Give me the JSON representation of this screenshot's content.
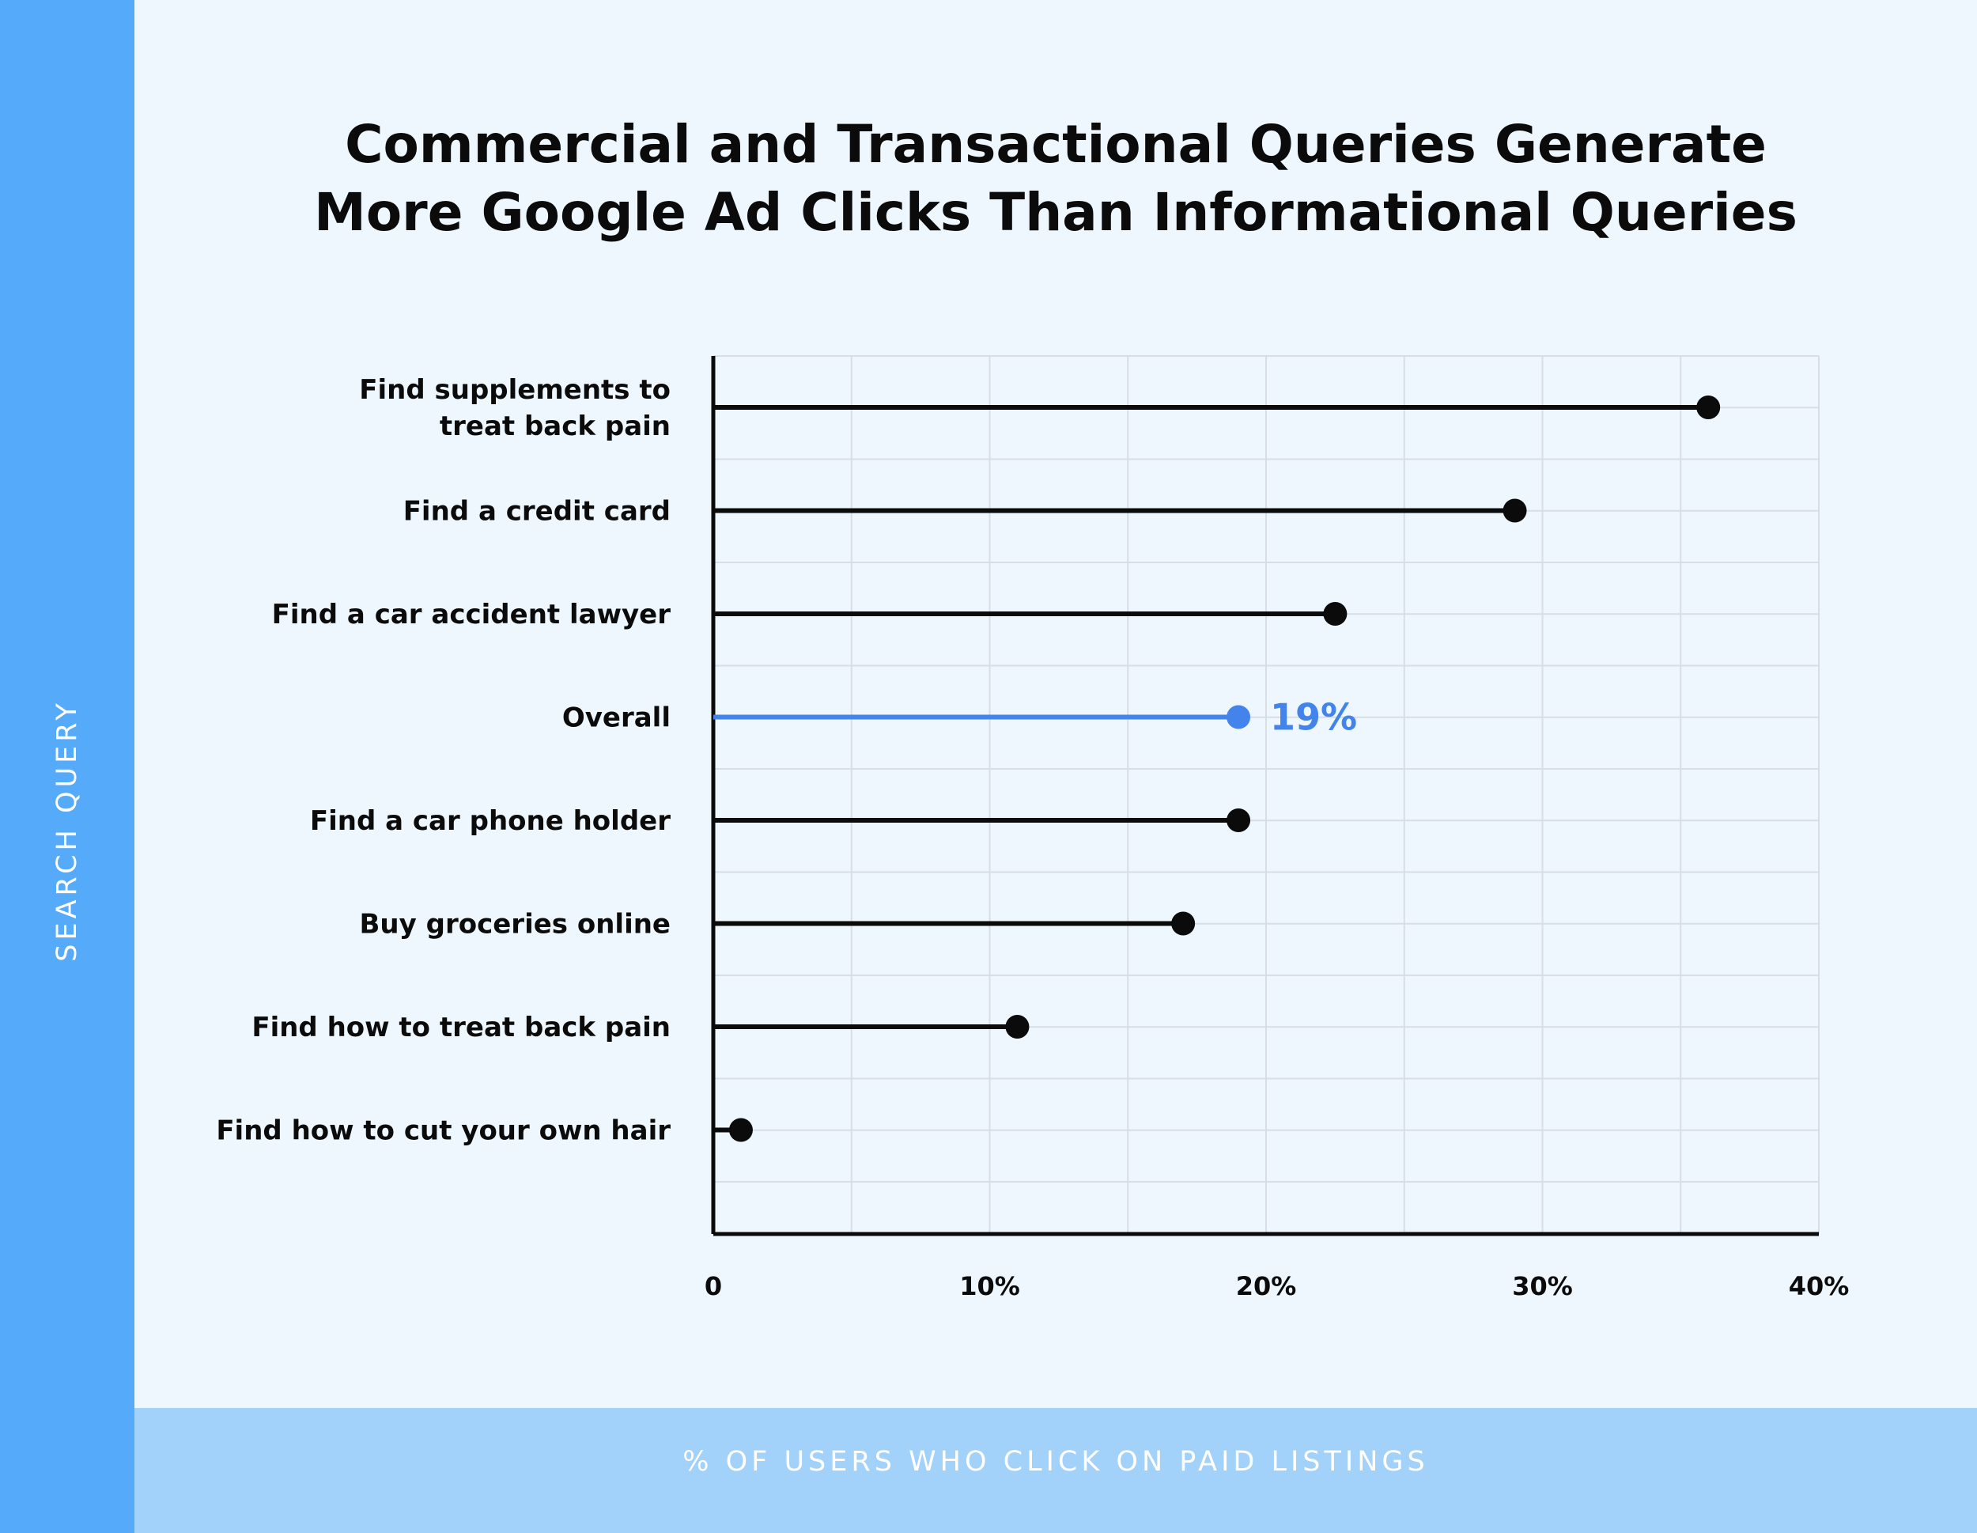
{
  "chart_data": {
    "type": "lollipop",
    "title": [
      "Commercial and Transactional Queries Generate",
      "More Google Ad Clicks Than Informational Queries"
    ],
    "xlabel": "% OF USERS WHO CLICK ON PAID LISTINGS",
    "ylabel": "SEARCH QUERY",
    "xlim": [
      0,
      40
    ],
    "x_ticks": [
      0,
      10,
      20,
      30,
      40
    ],
    "x_tick_labels": [
      "0",
      "10%",
      "20%",
      "30%",
      "40%"
    ],
    "grid": true,
    "categories": [
      [
        "Find supplements to",
        "treat back pain"
      ],
      [
        "Find a credit card"
      ],
      [
        "Find a car accident lawyer"
      ],
      [
        "Overall"
      ],
      [
        "Find a car phone holder"
      ],
      [
        "Buy groceries online"
      ],
      [
        "Find how to treat back pain"
      ],
      [
        "Find how to cut your own hair"
      ]
    ],
    "values": [
      36,
      29,
      22.5,
      19,
      19,
      17,
      11,
      1
    ],
    "highlight_index": 3,
    "highlight_label": "19%",
    "colors": {
      "default": "#0b0b0b",
      "highlight": "#4283ec",
      "grid": "#d9dde6"
    }
  }
}
